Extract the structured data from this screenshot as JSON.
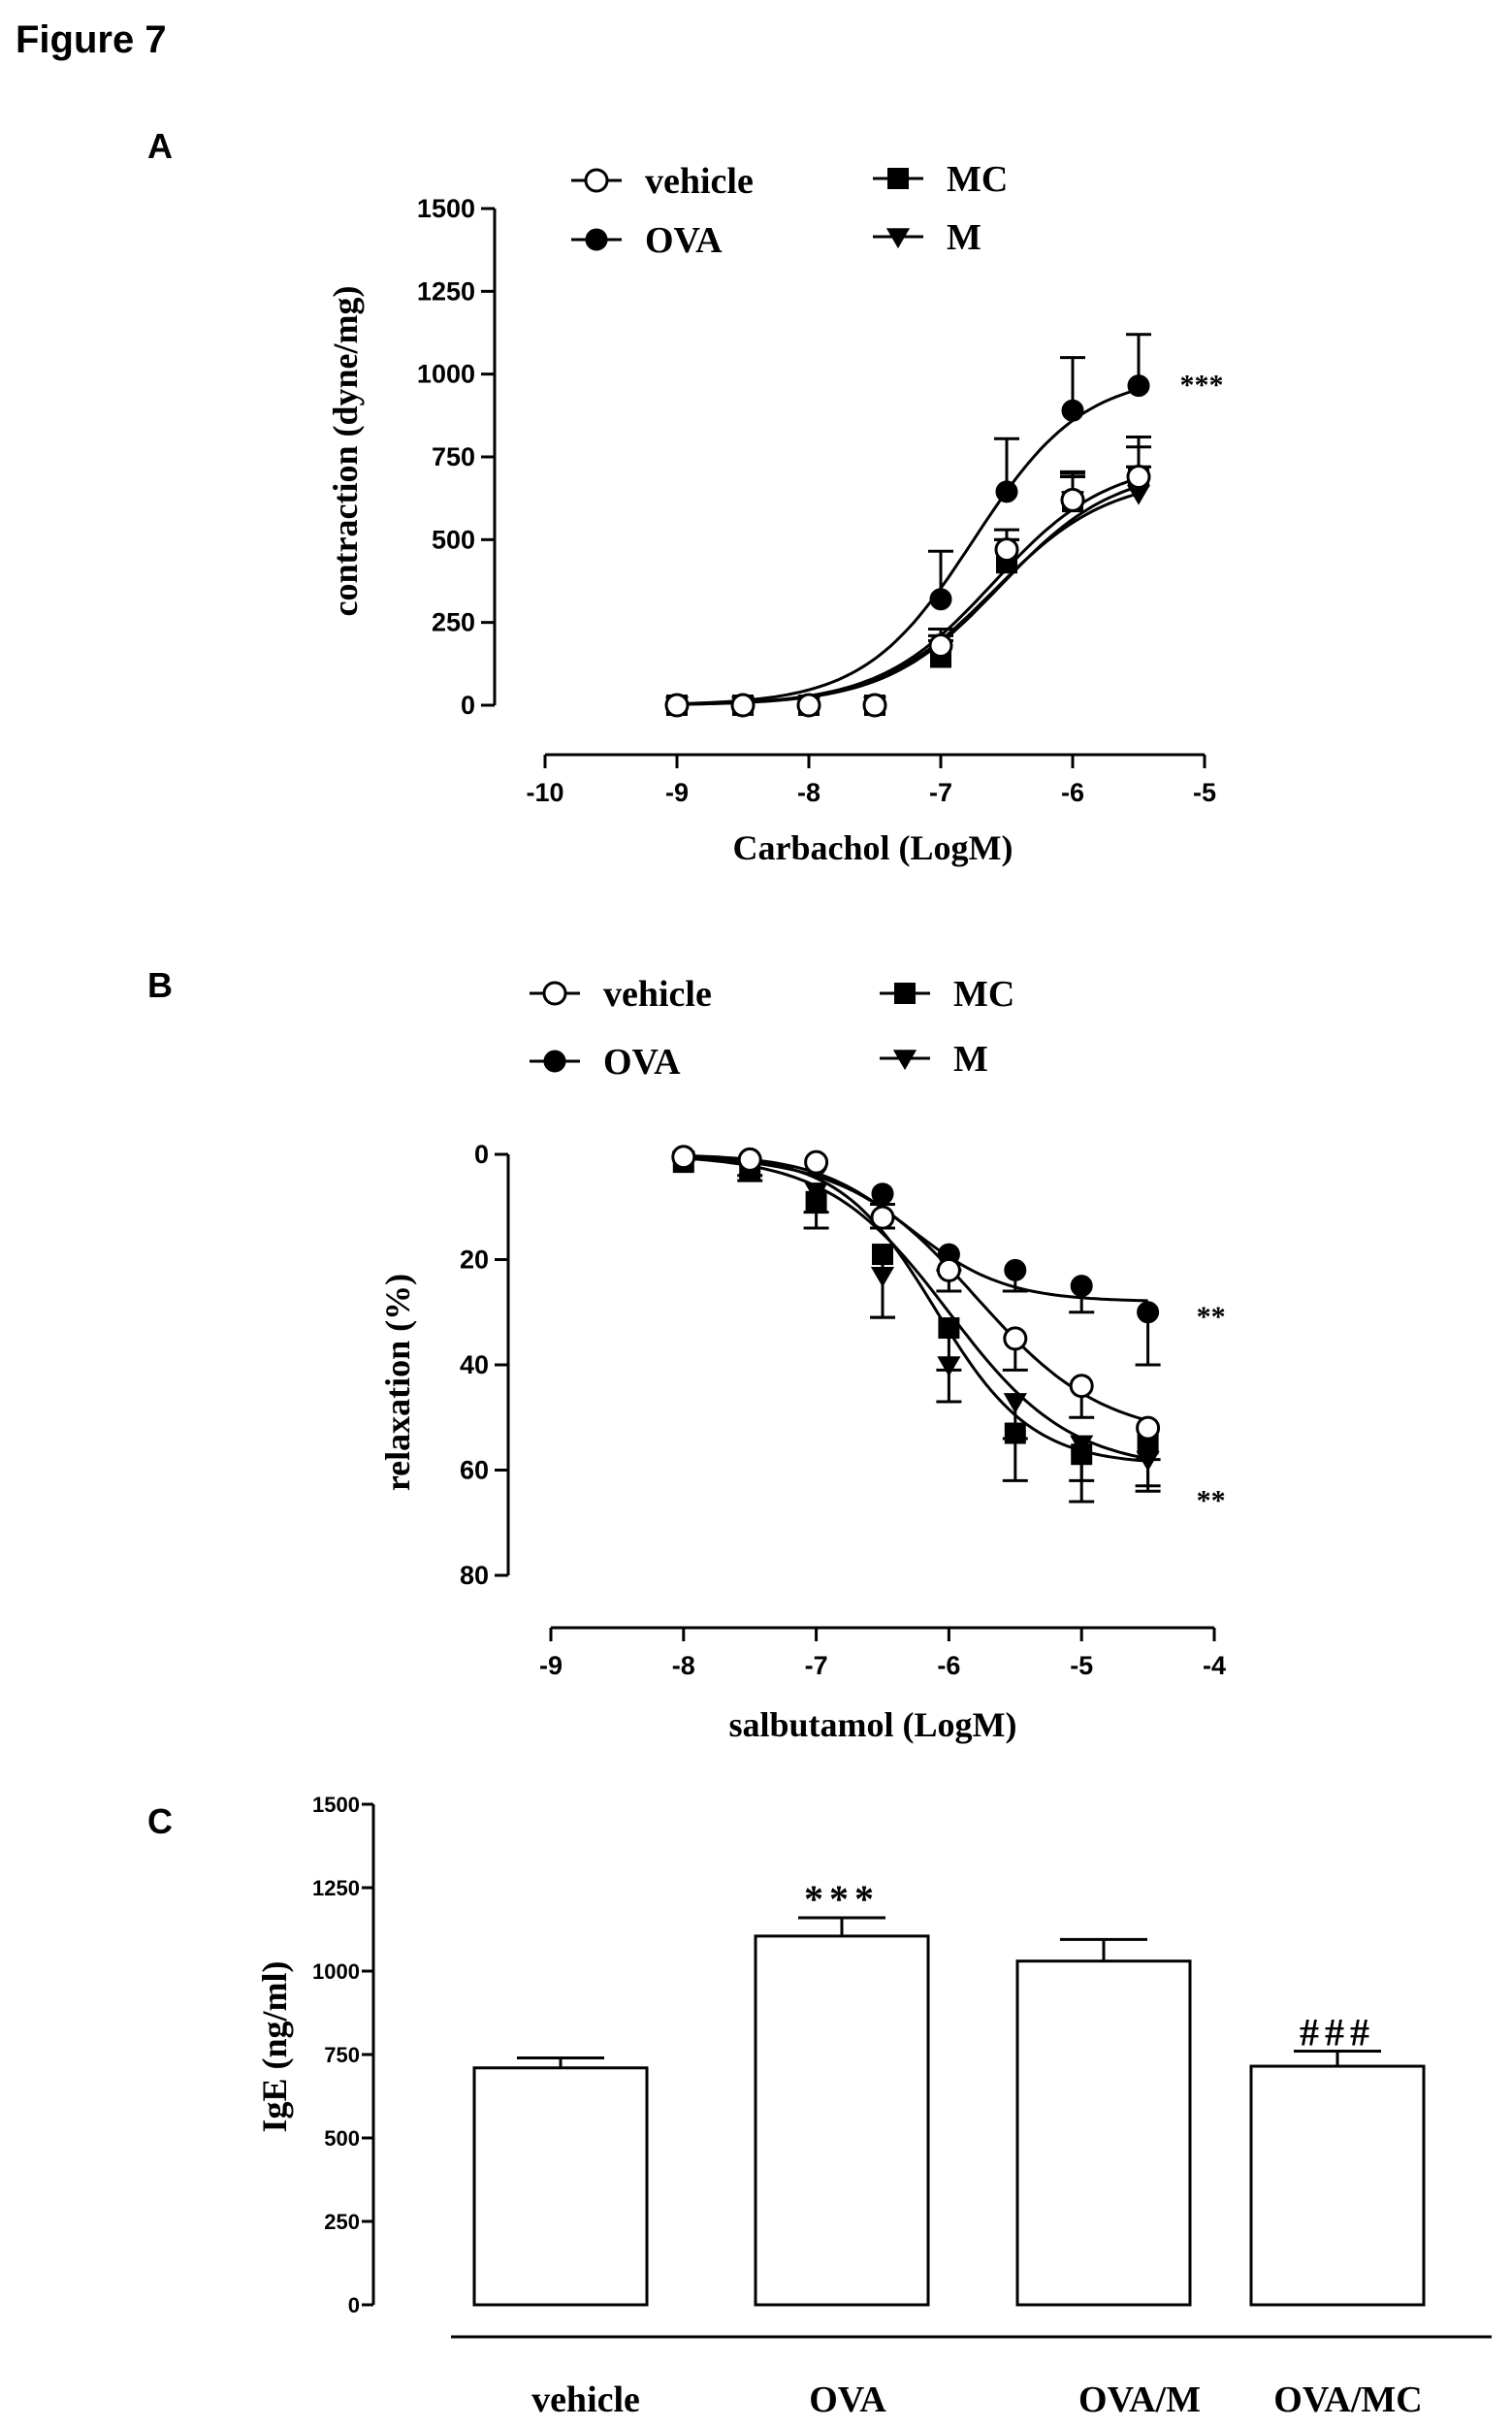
{
  "figure_title": "Figure 7",
  "chart_data": [
    {
      "panel": "A",
      "type": "line",
      "xlabel": "Carbachol (LogM)",
      "ylabel": "contraction (dyne/mg)",
      "xlim": [
        -10,
        -5
      ],
      "ylim": [
        0,
        1500
      ],
      "xticks": [
        -10,
        -9,
        -8,
        -7,
        -6,
        -5
      ],
      "yticks": [
        0,
        250,
        500,
        750,
        1000,
        1250,
        1500
      ],
      "x": [
        -9,
        -8.5,
        -8,
        -7.5,
        -7,
        -6.5,
        -6,
        -5.5
      ],
      "legend": [
        "vehicle",
        "OVA",
        "MC",
        "M"
      ],
      "series": [
        {
          "name": "vehicle",
          "marker": "open-circle",
          "values": [
            0,
            0,
            0,
            0,
            180,
            470,
            620,
            690
          ],
          "errors": [
            0,
            0,
            0,
            0,
            50,
            60,
            80,
            90
          ],
          "fit": {
            "bottom": 0,
            "top": 740,
            "logec50": -6.6,
            "hill": 1.0
          }
        },
        {
          "name": "OVA",
          "marker": "filled-circle",
          "values": [
            0,
            0,
            0,
            0,
            320,
            645,
            890,
            965
          ],
          "errors": [
            0,
            0,
            0,
            0,
            145,
            160,
            160,
            155
          ],
          "fit": {
            "bottom": 0,
            "top": 1000,
            "logec50": -6.75,
            "hill": 1.05
          }
        },
        {
          "name": "MC",
          "marker": "filled-square",
          "values": [
            0,
            0,
            0,
            0,
            145,
            430,
            615,
            690
          ],
          "errors": [
            0,
            0,
            0,
            0,
            50,
            70,
            90,
            120
          ],
          "fit": {
            "bottom": 0,
            "top": 720,
            "logec50": -6.55,
            "hill": 1.0
          }
        },
        {
          "name": "M",
          "marker": "filled-triangle-down",
          "values": [
            0,
            0,
            0,
            0,
            170,
            440,
            620,
            640
          ],
          "errors": [
            0,
            0,
            0,
            0,
            40,
            60,
            70,
            80
          ],
          "fit": {
            "bottom": 0,
            "top": 690,
            "logec50": -6.6,
            "hill": 1.0
          }
        }
      ],
      "annotations": [
        {
          "text": "***",
          "x": -5.5,
          "y": 980
        }
      ]
    },
    {
      "panel": "B",
      "type": "line",
      "xlabel": "salbutamol (LogM)",
      "ylabel": "relaxation (%)",
      "xlim": [
        -9,
        -4
      ],
      "ylim": [
        0,
        80
      ],
      "y_inverted": true,
      "xticks": [
        -9,
        -8,
        -7,
        -6,
        -5,
        -4
      ],
      "yticks": [
        0,
        20,
        40,
        60,
        80
      ],
      "x": [
        -8,
        -7.5,
        -7,
        -6.5,
        -6,
        -5.5,
        -5,
        -4.5
      ],
      "legend": [
        "vehicle",
        "OVA",
        "MC",
        "M"
      ],
      "series": [
        {
          "name": "vehicle",
          "marker": "open-circle",
          "values": [
            0.5,
            1,
            1.5,
            12,
            22,
            35,
            44,
            52
          ],
          "errors": [
            0,
            0,
            0,
            2,
            4,
            6,
            6,
            6
          ],
          "fit": {
            "bottom": 0,
            "top": 54,
            "logec50": -5.8,
            "hill": 0.9
          }
        },
        {
          "name": "OVA",
          "marker": "filled-circle",
          "values": [
            0.5,
            0.8,
            2,
            7.5,
            19,
            22,
            25,
            30
          ],
          "errors": [
            0,
            0,
            0,
            2,
            3,
            4,
            5,
            10
          ],
          "fit": {
            "bottom": 0,
            "top": 28,
            "logec50": -6.3,
            "hill": 1.2
          }
        },
        {
          "name": "MC",
          "marker": "filled-square",
          "values": [
            1.5,
            3,
            9,
            19,
            33,
            53,
            57,
            55
          ],
          "errors": [
            0,
            2,
            5,
            12,
            8,
            9,
            9,
            8
          ],
          "fit": {
            "bottom": 0,
            "top": 59,
            "logec50": -6.1,
            "hill": 1.2
          }
        },
        {
          "name": "M",
          "marker": "filled-triangle-down",
          "values": [
            1,
            2.5,
            7,
            23,
            40,
            47,
            55,
            58
          ],
          "errors": [
            0,
            1.5,
            4,
            8,
            7,
            7,
            7,
            6
          ],
          "fit": {
            "bottom": 0,
            "top": 60,
            "logec50": -6.0,
            "hill": 0.95
          }
        }
      ],
      "annotations": [
        {
          "text": "**",
          "x": -4.5,
          "y": 30
        },
        {
          "text": "**",
          "x": -4.5,
          "y": 65
        }
      ]
    },
    {
      "panel": "C",
      "type": "bar",
      "ylabel": "IgE (ng/ml)",
      "ylim": [
        0,
        1500
      ],
      "yticks": [
        0,
        250,
        500,
        750,
        1000,
        1250,
        1500
      ],
      "categories": [
        "vehicle",
        "OVA",
        "OVA/M",
        "OVA/MC"
      ],
      "values": [
        710,
        1105,
        1030,
        715
      ],
      "errors": [
        30,
        55,
        65,
        45
      ],
      "annotations": [
        {
          "text": "***",
          "category": "OVA"
        },
        {
          "text": "###",
          "category": "OVA/MC"
        }
      ]
    }
  ]
}
